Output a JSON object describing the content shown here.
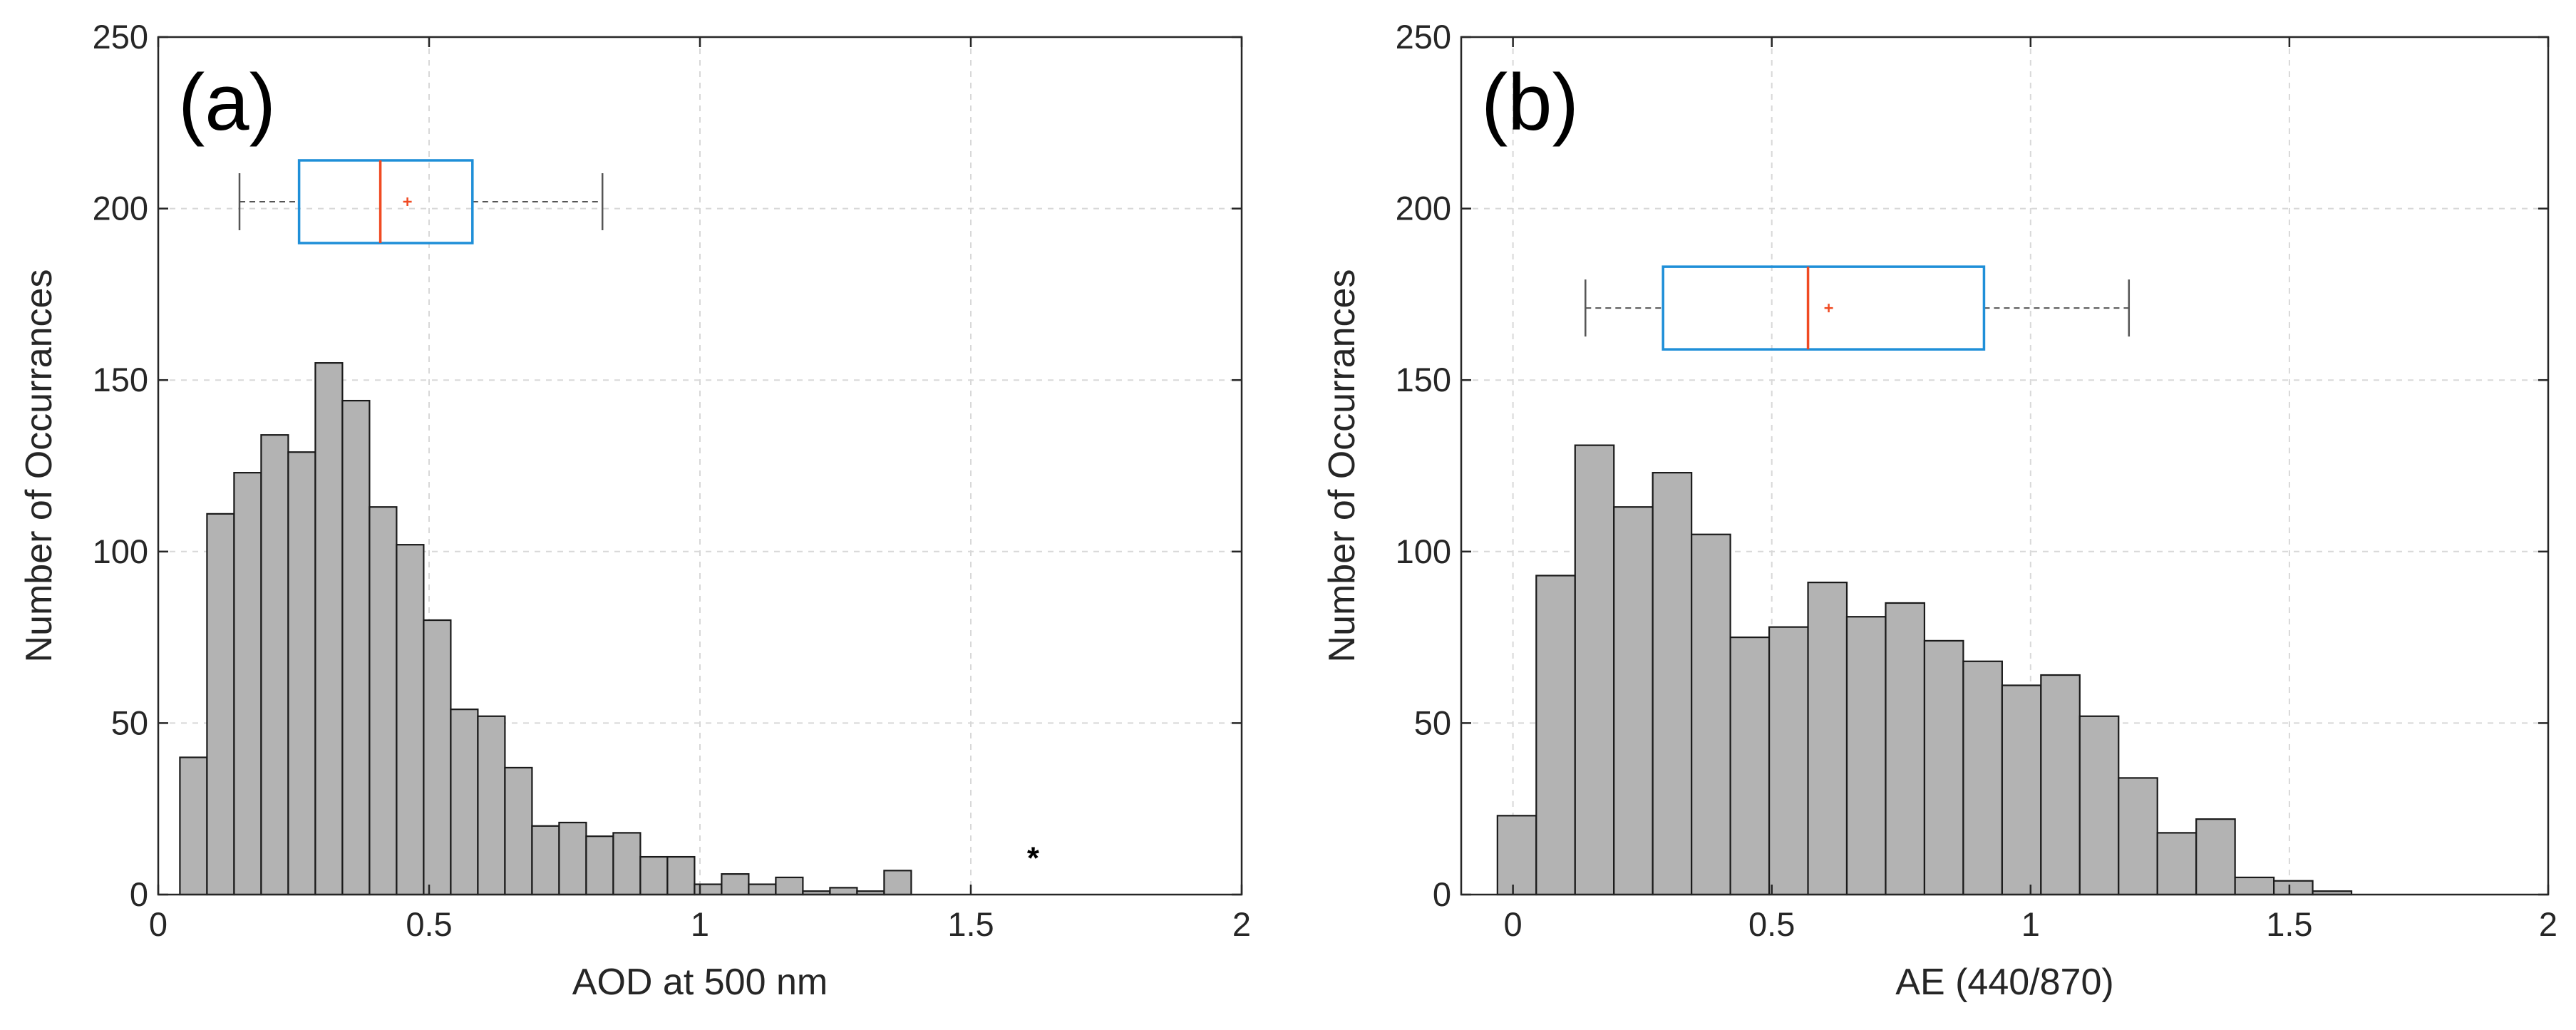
{
  "colors": {
    "bar_fill": "#b3b3b3",
    "bar_edge": "#1a1a1a",
    "box": "#1f8fd8",
    "median": "#f04a22",
    "whisker": "#555555",
    "grid": "#d8d8d8",
    "axis": "#262626"
  },
  "chart_data": [
    {
      "type": "bar",
      "panel_label": "(a)",
      "xlabel": "AOD at 500 nm",
      "ylabel": "Number of Occurrances",
      "xlim": [
        0,
        2
      ],
      "ylim": [
        0,
        250
      ],
      "xticks": [
        0,
        0.5,
        1,
        1.5,
        2
      ],
      "xtick_labels": [
        "0",
        "0.5",
        "1",
        "1.5",
        "2"
      ],
      "yticks": [
        0,
        50,
        100,
        150,
        200,
        250
      ],
      "ytick_labels": [
        "0",
        "50",
        "100",
        "150",
        "200",
        "250"
      ],
      "grid": true,
      "bin_width": 0.05,
      "bin_edges_start": 0.04,
      "values": [
        40,
        111,
        123,
        134,
        129,
        155,
        144,
        113,
        102,
        80,
        54,
        52,
        37,
        20,
        21,
        17,
        18,
        11,
        11,
        3,
        6,
        3,
        5,
        1,
        2,
        1,
        7
      ],
      "annotation": {
        "text": "*",
        "x": 1.615,
        "y": 13
      },
      "boxplot": {
        "y": 202,
        "whisker_low": 0.15,
        "q1": 0.26,
        "median": 0.41,
        "q3": 0.58,
        "whisker_high": 0.82,
        "mean": 0.46
      }
    },
    {
      "type": "bar",
      "panel_label": "(b)",
      "xlabel": "AE (440/870)",
      "ylabel": "Number of Occurrances",
      "xlim": [
        -0.1,
        2
      ],
      "ylim": [
        0,
        250
      ],
      "xticks": [
        0,
        0.5,
        1,
        1.5,
        2
      ],
      "xtick_labels": [
        "0",
        "0.5",
        "1",
        "1.5",
        "2"
      ],
      "yticks": [
        0,
        50,
        100,
        150,
        200,
        250
      ],
      "ytick_labels": [
        "0",
        "50",
        "100",
        "150",
        "200",
        "250"
      ],
      "grid": true,
      "bin_width": 0.075,
      "bin_edges_start": -0.03,
      "values": [
        23,
        93,
        131,
        113,
        123,
        105,
        75,
        78,
        91,
        81,
        85,
        74,
        68,
        61,
        64,
        52,
        34,
        18,
        22,
        5,
        4,
        1
      ],
      "boxplot": {
        "y": 171,
        "whisker_low": 0.14,
        "q1": 0.29,
        "median": 0.57,
        "q3": 0.91,
        "whisker_high": 1.19,
        "mean": 0.61
      }
    }
  ]
}
